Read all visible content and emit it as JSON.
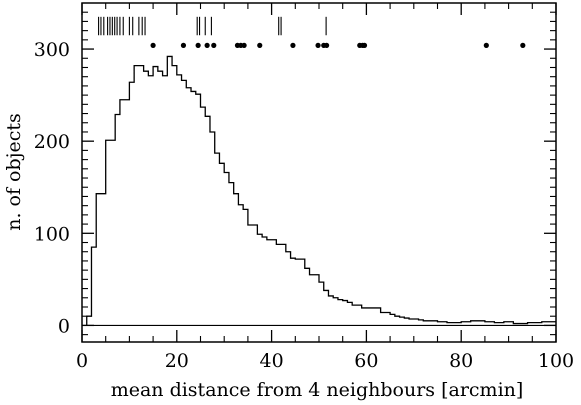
{
  "chart_data": {
    "type": "histogram",
    "title": "",
    "xlabel": "mean distance from 4 neighbours [arcmin]",
    "ylabel": "n. of objects",
    "xlim": [
      0,
      100
    ],
    "ylim": [
      -18,
      350
    ],
    "x_ticks": [
      0,
      20,
      40,
      60,
      80,
      100
    ],
    "y_ticks": [
      0,
      100,
      200,
      300
    ],
    "grid": false,
    "legend": "none",
    "baseline": 0,
    "histogram": {
      "bin_edges": [
        1,
        2,
        3,
        5,
        7,
        8,
        10,
        11,
        13,
        14,
        15,
        16,
        17,
        18,
        19,
        20,
        21,
        22,
        23,
        24,
        25,
        26,
        27,
        28,
        29,
        30,
        31,
        32,
        33,
        34,
        35,
        37,
        38,
        39,
        41,
        43,
        44,
        45,
        47,
        48,
        50,
        51,
        52,
        53,
        54,
        55,
        56,
        57,
        59,
        63,
        65,
        66,
        67,
        68,
        69,
        71,
        72,
        75,
        77,
        80,
        82,
        85,
        87,
        89,
        91,
        94,
        97,
        100
      ],
      "counts": [
        10,
        85,
        143,
        201,
        229,
        245,
        264,
        282,
        276,
        271,
        281,
        276,
        271,
        292,
        282,
        272,
        266,
        258,
        254,
        251,
        237,
        227,
        210,
        187,
        176,
        166,
        155,
        143,
        131,
        126,
        109,
        99,
        96,
        93,
        88,
        80,
        73,
        72,
        62,
        55,
        47,
        38,
        32,
        30,
        28,
        27,
        25,
        22,
        19,
        14,
        12,
        10,
        9,
        8,
        7,
        6,
        5,
        4,
        3,
        4,
        5,
        4,
        3,
        4,
        2,
        3,
        4
      ]
    },
    "upper_ticks": {
      "description": "vertical tick marks along the top",
      "x": [
        3.5,
        4.0,
        4.6,
        5.4,
        5.9,
        6.4,
        6.9,
        7.4,
        8.0,
        8.7,
        10.0,
        10.7,
        12.0,
        12.7,
        13.3,
        24.3,
        24.8,
        26.0,
        27.3,
        41.5,
        42.0,
        51.5
      ],
      "y_top": 335,
      "y_bottom": 315
    },
    "upper_dots": {
      "x": [
        15.0,
        21.4,
        24.5,
        26.4,
        27.8,
        32.8,
        33.5,
        34.2,
        37.5,
        44.5,
        49.8,
        51.0,
        51.6,
        58.6,
        59.2,
        59.6,
        85.3,
        93.0
      ],
      "y": 304
    }
  }
}
